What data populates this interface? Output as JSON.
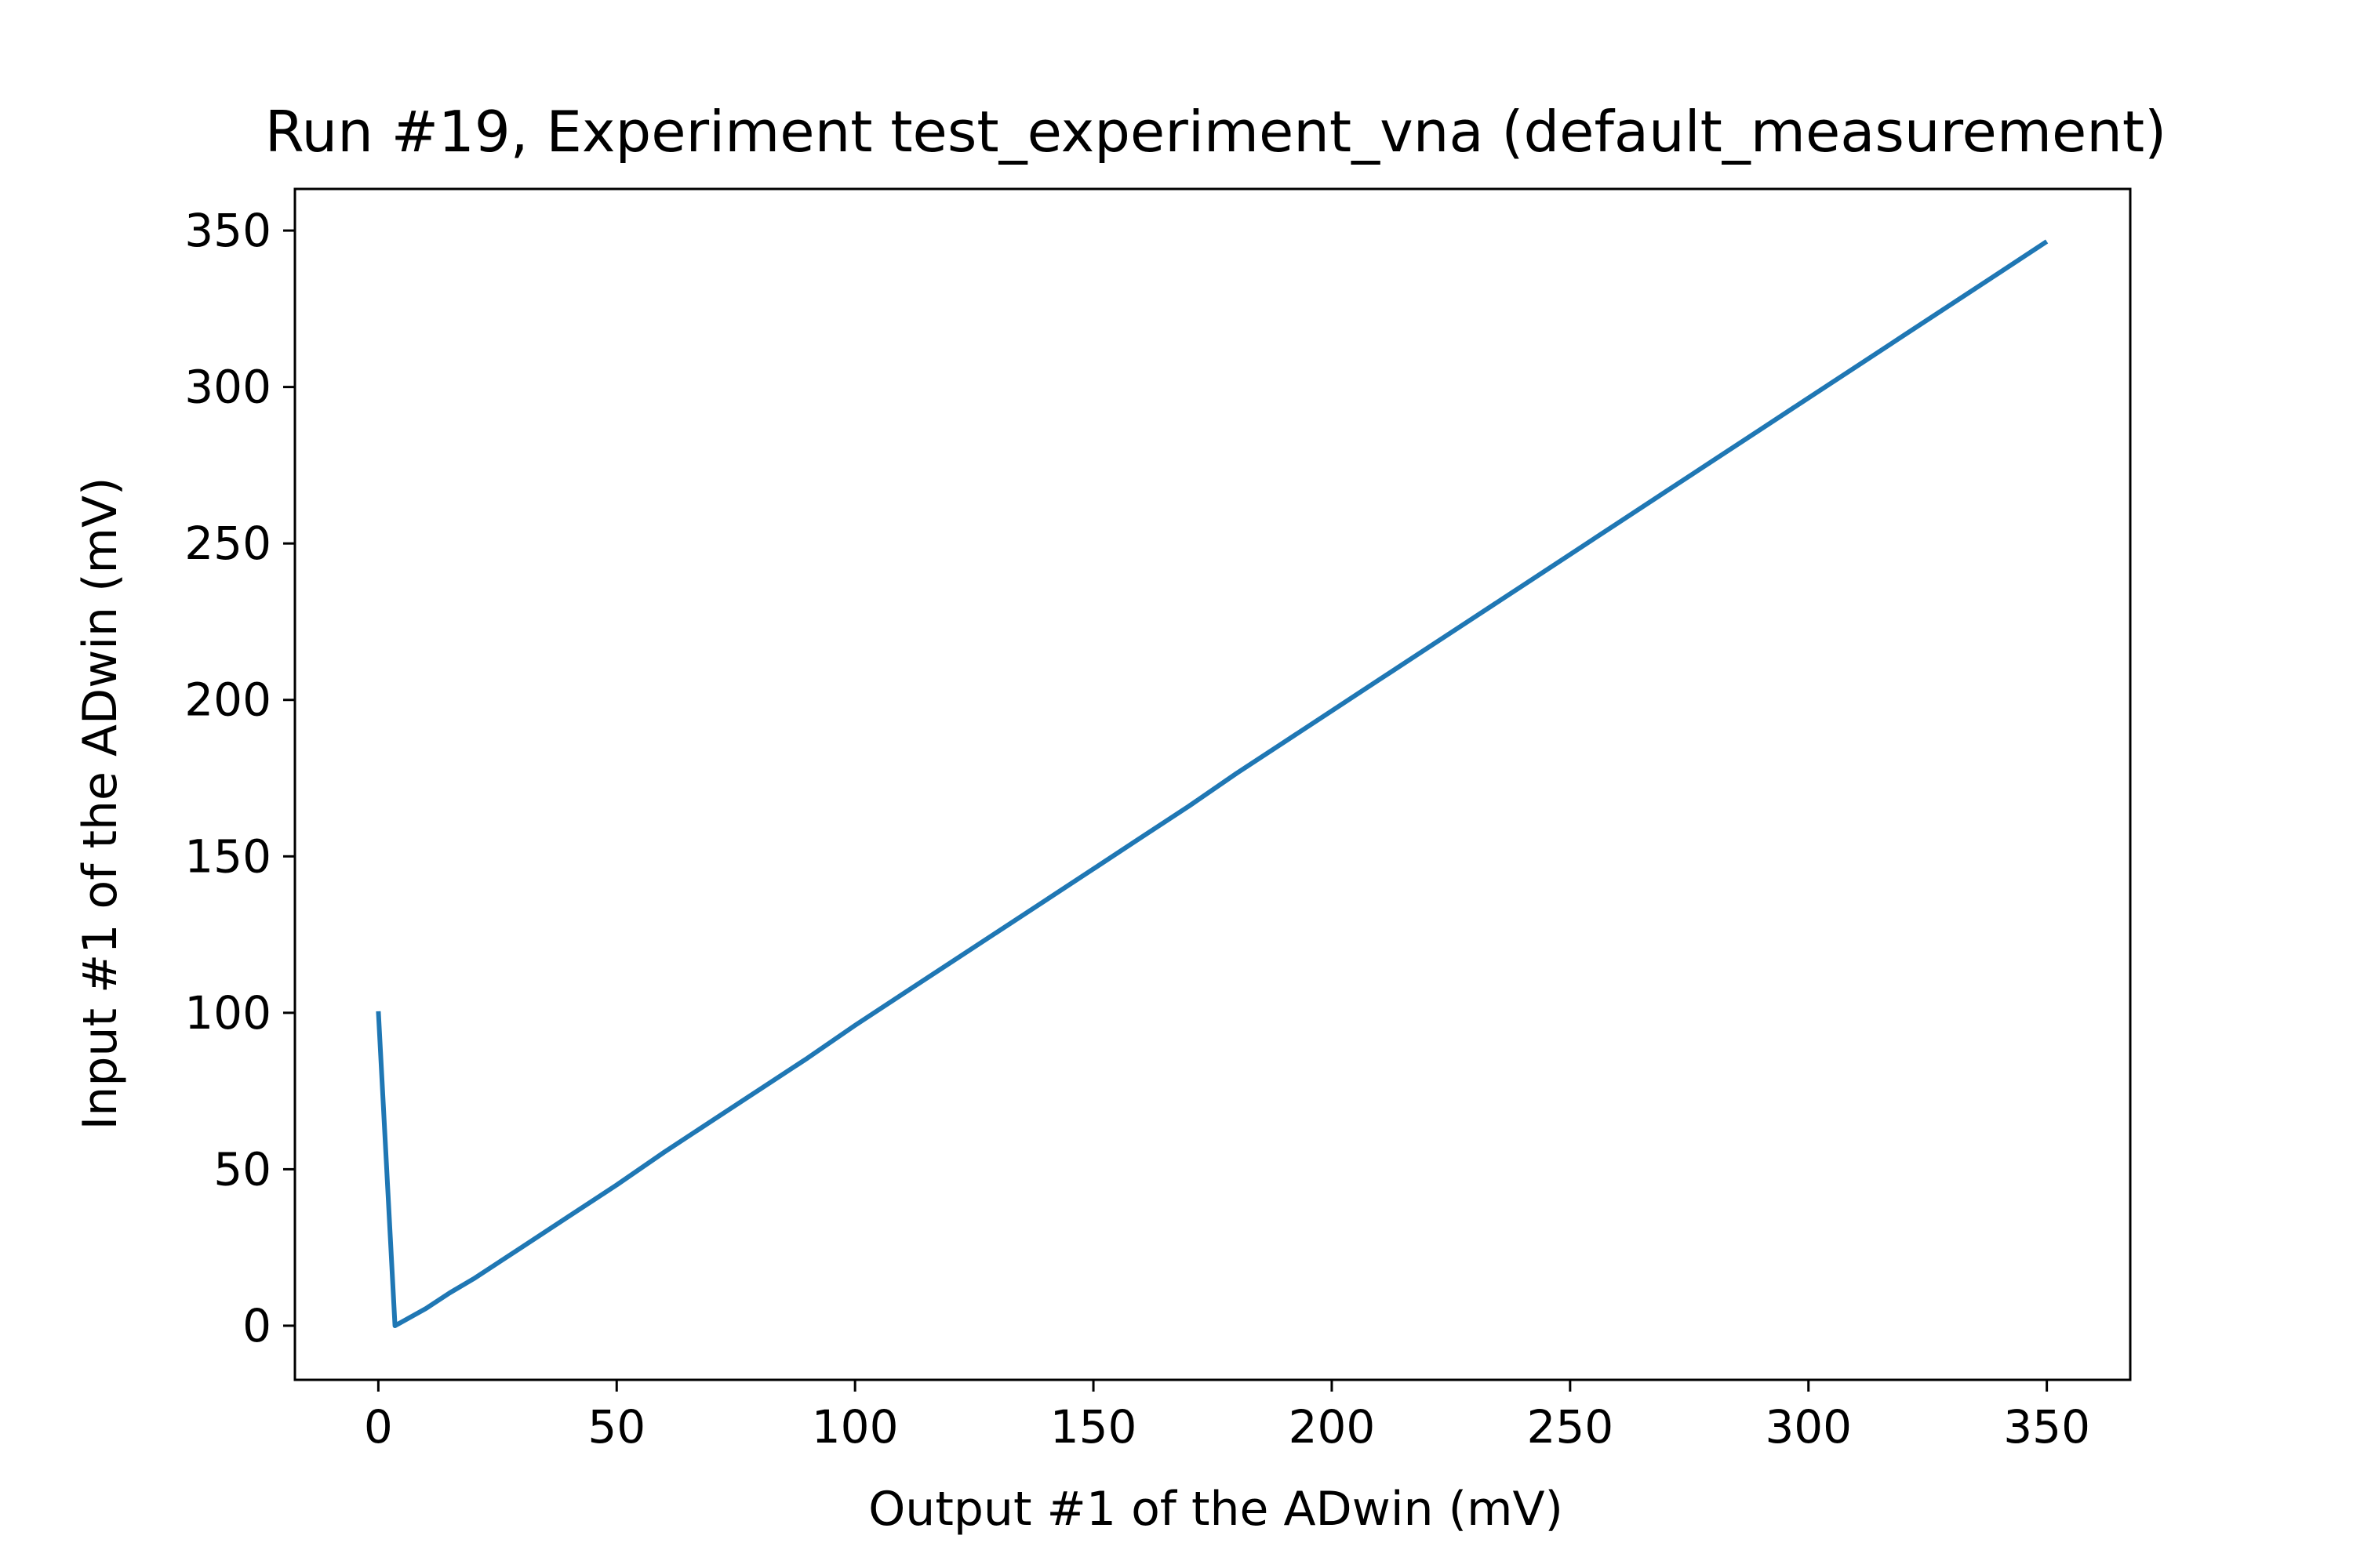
{
  "chart_data": {
    "type": "line",
    "title": "Run #19, Experiment test_experiment_vna (default_measurement)",
    "xlabel": "Output #1 of the ADwin (mV)",
    "ylabel": "Input #1 of the ADwin (mV)",
    "xlim": [
      -17.5,
      367.5
    ],
    "ylim": [
      -17.3,
      363.3
    ],
    "xticks": [
      0,
      50,
      100,
      150,
      200,
      250,
      300,
      350
    ],
    "yticks": [
      0,
      50,
      100,
      150,
      200,
      250,
      300,
      350
    ],
    "grid": false,
    "line_color": "#1f77b4",
    "series": [
      {
        "x": [
          0,
          3.5,
          10,
          15,
          20,
          30,
          40,
          50,
          60,
          70,
          80,
          90,
          100,
          110,
          120,
          130,
          140,
          150,
          160,
          170,
          180,
          190,
          200,
          210,
          220,
          230,
          240,
          250,
          260,
          270,
          280,
          290,
          300,
          310,
          320,
          330,
          340,
          350
        ],
        "y": [
          100.5,
          0,
          5.5,
          10.5,
          15,
          25,
          35,
          45,
          55.5,
          65.5,
          75.5,
          85.5,
          96,
          106,
          116,
          126,
          136,
          146,
          156,
          166,
          176.5,
          186.5,
          196.5,
          206.5,
          216.5,
          226.5,
          236.5,
          246.5,
          256.5,
          266.5,
          276.5,
          286.5,
          296.5,
          306.5,
          316.5,
          326.5,
          336.5,
          346.5
        ]
      }
    ]
  }
}
